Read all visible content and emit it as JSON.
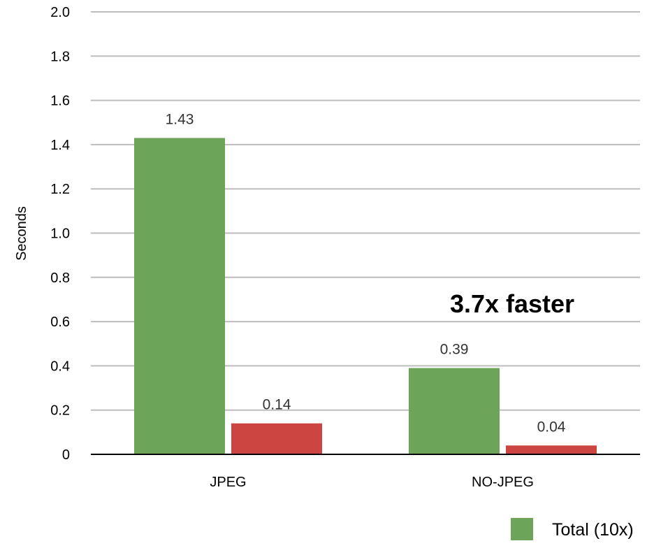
{
  "chart_data": {
    "type": "bar",
    "categories": [
      "JPEG",
      "NO-JPEG"
    ],
    "series": [
      {
        "name": "Total (10x)",
        "color": "#6ca55a",
        "values": [
          1.43,
          0.39
        ]
      },
      {
        "color": "#cc4540",
        "values": [
          0.14,
          0.04
        ]
      }
    ],
    "data_labels": [
      [
        "1.43",
        "0.39"
      ],
      [
        "0.14",
        "0.04"
      ]
    ],
    "ylabel": "Seconds",
    "xlabel": "",
    "title": "",
    "ylim": [
      0,
      2.0
    ],
    "yticks": [
      "0",
      "0.2",
      "0.4",
      "0.6",
      "0.8",
      "1.0",
      "1.2",
      "1.4",
      "1.6",
      "1.8",
      "2.0"
    ],
    "grid": true,
    "annotation": "3.7x faster",
    "legend_position": "bottom-right"
  }
}
